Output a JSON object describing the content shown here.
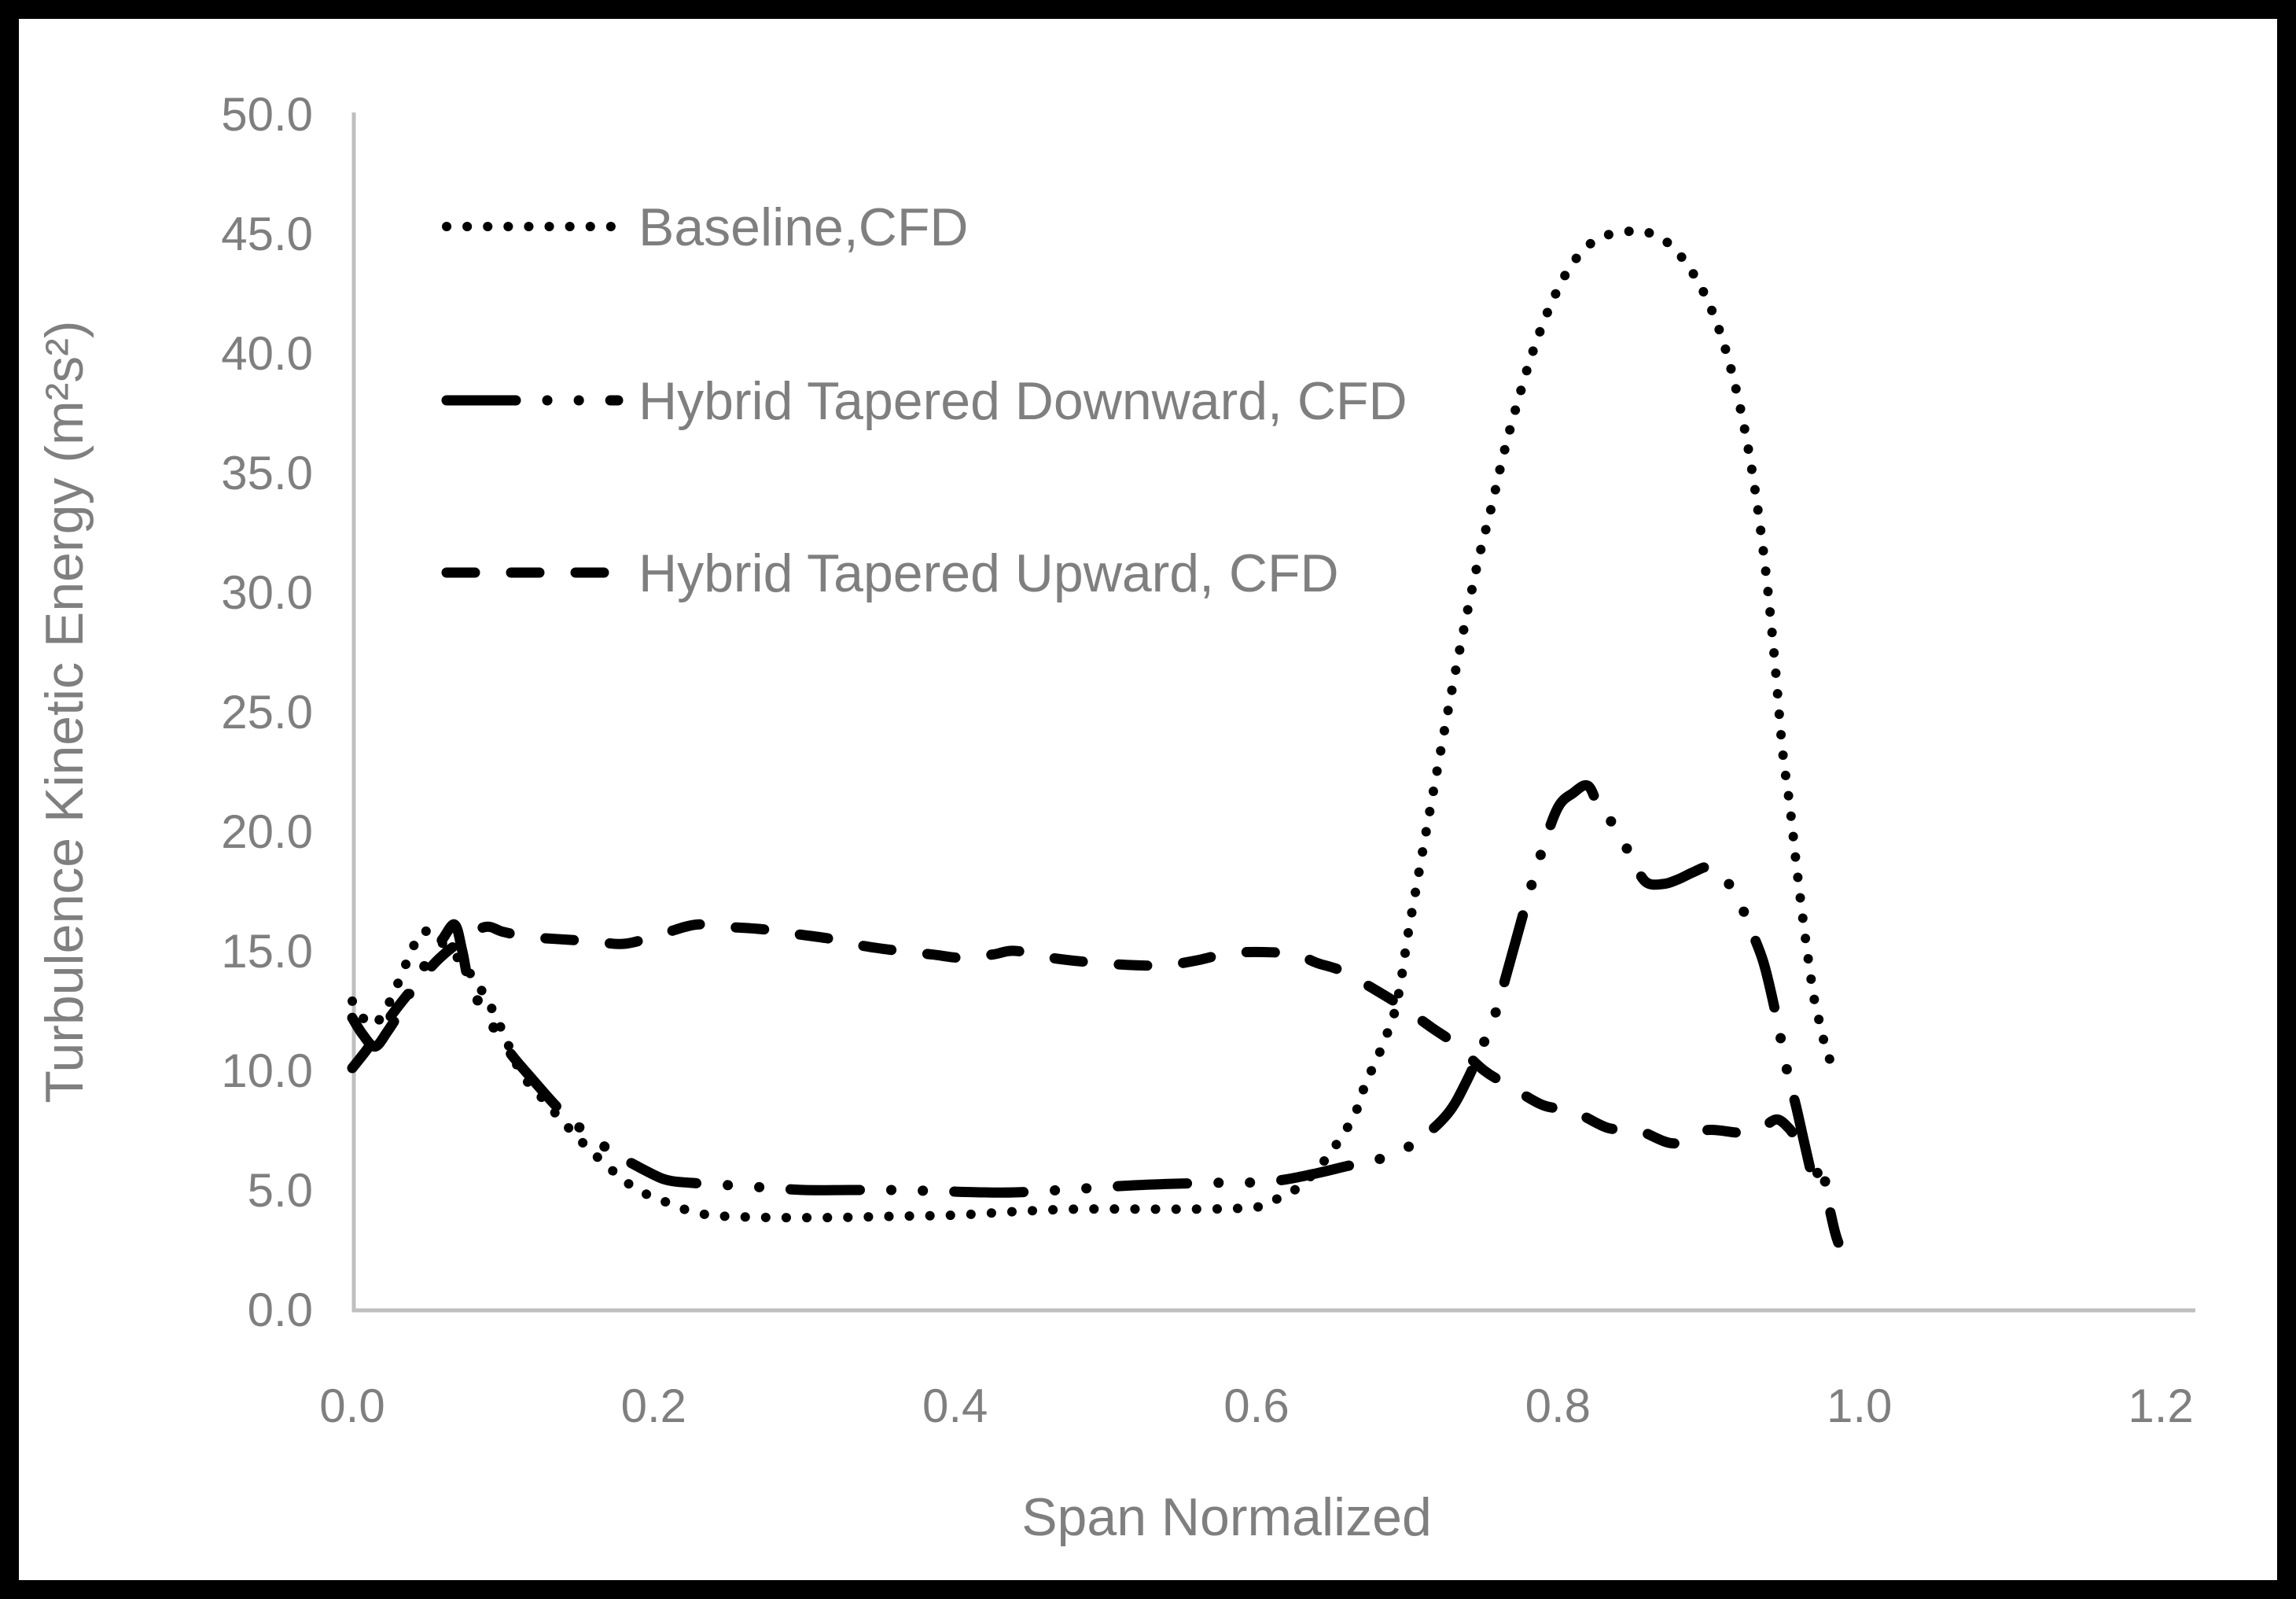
{
  "colors": {
    "background": "#ffffff",
    "frame_border": "#000000",
    "axis_line": "#bfbfbf",
    "label_text": "#7f7f7f",
    "series_stroke": "#000000"
  },
  "chart_data": {
    "type": "line",
    "title": "",
    "xlabel": "Span Normalized",
    "ylabel": "Turbulence Kinetic Energy (m²s²)",
    "xlim": [
      0.0,
      1.2
    ],
    "ylim": [
      0.0,
      50.0
    ],
    "x_ticks": [
      "0.0",
      "0.2",
      "0.4",
      "0.6",
      "0.8",
      "1.0",
      "1.2"
    ],
    "y_ticks": [
      "0.0",
      "5.0",
      "10.0",
      "15.0",
      "20.0",
      "25.0",
      "30.0",
      "35.0",
      "40.0",
      "45.0",
      "50.0"
    ],
    "grid": false,
    "legend_position": "inside-upper-left",
    "series": [
      {
        "name": "Baseline,CFD",
        "style": "dotted",
        "points": [
          [
            0,
            12.9
          ],
          [
            0.005,
            12.4
          ],
          [
            0.012,
            11.9
          ],
          [
            0.02,
            12.3
          ],
          [
            0.03,
            13.6
          ],
          [
            0.038,
            14.8
          ],
          [
            0.046,
            15.8
          ],
          [
            0.054,
            15.6
          ],
          [
            0.062,
            15.2
          ],
          [
            0.07,
            14.7
          ],
          [
            0.08,
            13.9
          ],
          [
            0.09,
            12.9
          ],
          [
            0.1,
            11.6
          ],
          [
            0.112,
            9.9
          ],
          [
            0.128,
            8.7
          ],
          [
            0.145,
            7.5
          ],
          [
            0.164,
            6.3
          ],
          [
            0.187,
            5.1
          ],
          [
            0.208,
            4.5
          ],
          [
            0.22,
            4.2
          ],
          [
            0.232,
            4.0
          ],
          [
            0.248,
            3.9
          ],
          [
            0.28,
            3.85
          ],
          [
            0.32,
            3.85
          ],
          [
            0.36,
            3.9
          ],
          [
            0.4,
            3.95
          ],
          [
            0.44,
            4.1
          ],
          [
            0.48,
            4.2
          ],
          [
            0.52,
            4.2
          ],
          [
            0.56,
            4.2
          ],
          [
            0.594,
            4.25
          ],
          [
            0.607,
            4.4
          ],
          [
            0.618,
            4.8
          ],
          [
            0.63,
            5.2
          ],
          [
            0.646,
            6.3
          ],
          [
            0.655,
            7.1
          ],
          [
            0.663,
            7.9
          ],
          [
            0.668,
            8.6
          ],
          [
            0.672,
            9.4
          ],
          [
            0.677,
            10.1
          ],
          [
            0.682,
            10.8
          ],
          [
            0.687,
            11.6
          ],
          [
            0.691,
            12.3
          ],
          [
            0.694,
            13.1
          ],
          [
            0.697,
            14.2
          ],
          [
            0.7,
            15.5
          ],
          [
            0.705,
            17.3
          ],
          [
            0.712,
            19.8
          ],
          [
            0.72,
            22.6
          ],
          [
            0.729,
            25.7
          ],
          [
            0.738,
            28.6
          ],
          [
            0.747,
            31.3
          ],
          [
            0.756,
            33.6
          ],
          [
            0.764,
            35.8
          ],
          [
            0.773,
            37.9
          ],
          [
            0.783,
            40.0
          ],
          [
            0.795,
            42.0
          ],
          [
            0.808,
            43.6
          ],
          [
            0.822,
            44.6
          ],
          [
            0.836,
            45.0
          ],
          [
            0.85,
            45.1
          ],
          [
            0.862,
            45.0
          ],
          [
            0.875,
            44.5
          ],
          [
            0.888,
            43.5
          ],
          [
            0.9,
            42.1
          ],
          [
            0.911,
            40.2
          ],
          [
            0.921,
            37.7
          ],
          [
            0.93,
            34.6
          ],
          [
            0.938,
            30.8
          ],
          [
            0.944,
            27.0
          ],
          [
            0.949,
            23.4
          ],
          [
            0.954,
            21.0
          ],
          [
            0.958,
            18.7
          ],
          [
            0.962,
            16.6
          ],
          [
            0.966,
            14.7
          ],
          [
            0.97,
            13.0
          ],
          [
            0.974,
            11.9
          ],
          [
            0.977,
            11.1
          ],
          [
            0.98,
            10.5
          ],
          [
            0.983,
            10.4
          ]
        ]
      },
      {
        "name": "Hybrid Tapered Downward, CFD",
        "style": "dash-dot-dot",
        "points": [
          [
            0,
            12.2
          ],
          [
            0.007,
            11.5
          ],
          [
            0.015,
            11.0
          ],
          [
            0.023,
            11.6
          ],
          [
            0.032,
            12.5
          ],
          [
            0.042,
            13.7
          ],
          [
            0.052,
            14.8
          ],
          [
            0.06,
            15.5
          ],
          [
            0.068,
            16.1
          ],
          [
            0.073,
            15.0
          ],
          [
            0.078,
            13.6
          ],
          [
            0.09,
            12.2
          ],
          [
            0.104,
            10.8
          ],
          [
            0.12,
            9.6
          ],
          [
            0.137,
            8.4
          ],
          [
            0.155,
            7.4
          ],
          [
            0.175,
            6.5
          ],
          [
            0.198,
            5.7
          ],
          [
            0.21,
            5.4
          ],
          [
            0.225,
            5.3
          ],
          [
            0.25,
            5.2
          ],
          [
            0.275,
            5.1
          ],
          [
            0.3,
            5.0
          ],
          [
            0.33,
            5.0
          ],
          [
            0.36,
            5.0
          ],
          [
            0.39,
            4.95
          ],
          [
            0.42,
            4.9
          ],
          [
            0.44,
            4.9
          ],
          [
            0.47,
            5.0
          ],
          [
            0.52,
            5.2
          ],
          [
            0.57,
            5.3
          ],
          [
            0.59,
            5.3
          ],
          [
            0.615,
            5.4
          ],
          [
            0.64,
            5.7
          ],
          [
            0.66,
            6.0
          ],
          [
            0.687,
            6.4
          ],
          [
            0.708,
            7.1
          ],
          [
            0.727,
            8.2
          ],
          [
            0.739,
            9.5
          ],
          [
            0.749,
            10.9
          ],
          [
            0.758,
            12.3
          ],
          [
            0.768,
            14.5
          ],
          [
            0.779,
            17.0
          ],
          [
            0.79,
            19.3
          ],
          [
            0.8,
            21.0
          ],
          [
            0.81,
            21.6
          ],
          [
            0.82,
            21.9
          ],
          [
            0.828,
            20.9
          ],
          [
            0.838,
            20.2
          ],
          [
            0.848,
            19.0
          ],
          [
            0.858,
            17.9
          ],
          [
            0.87,
            17.8
          ],
          [
            0.88,
            18.0
          ],
          [
            0.89,
            18.3
          ],
          [
            0.9,
            18.5
          ],
          [
            0.91,
            18.0
          ],
          [
            0.918,
            17.4
          ],
          [
            0.928,
            15.9
          ],
          [
            0.936,
            14.6
          ],
          [
            0.942,
            13.1
          ],
          [
            0.947,
            11.6
          ],
          [
            0.952,
            10.0
          ],
          [
            0.958,
            8.5
          ],
          [
            0.963,
            7.1
          ],
          [
            0.967,
            6.0
          ],
          [
            0.97,
            5.2
          ],
          [
            0.973,
            5.9
          ],
          [
            0.976,
            6.1
          ],
          [
            0.978,
            4.9
          ],
          [
            0.981,
            4.0
          ],
          [
            0.984,
            3.2
          ],
          [
            0.986,
            2.8
          ]
        ]
      },
      {
        "name": "Hybrid Tapered Upward, CFD",
        "style": "dashed",
        "points": [
          [
            0,
            10.1
          ],
          [
            0.01,
            10.9
          ],
          [
            0.02,
            11.8
          ],
          [
            0.032,
            12.8
          ],
          [
            0.045,
            13.8
          ],
          [
            0.058,
            14.7
          ],
          [
            0.072,
            15.4
          ],
          [
            0.088,
            16.0
          ],
          [
            0.1,
            15.8
          ],
          [
            0.115,
            15.6
          ],
          [
            0.135,
            15.5
          ],
          [
            0.16,
            15.4
          ],
          [
            0.181,
            15.3
          ],
          [
            0.205,
            15.7
          ],
          [
            0.228,
            16.1
          ],
          [
            0.25,
            16.0
          ],
          [
            0.273,
            15.9
          ],
          [
            0.295,
            15.7
          ],
          [
            0.318,
            15.5
          ],
          [
            0.34,
            15.2
          ],
          [
            0.363,
            15.0
          ],
          [
            0.385,
            14.85
          ],
          [
            0.406,
            14.7
          ],
          [
            0.425,
            14.85
          ],
          [
            0.44,
            15.0
          ],
          [
            0.465,
            14.7
          ],
          [
            0.494,
            14.5
          ],
          [
            0.52,
            14.4
          ],
          [
            0.54,
            14.4
          ],
          [
            0.56,
            14.6
          ],
          [
            0.582,
            14.9
          ],
          [
            0.605,
            14.95
          ],
          [
            0.626,
            14.85
          ],
          [
            0.64,
            14.5
          ],
          [
            0.657,
            14.15
          ],
          [
            0.678,
            13.4
          ],
          [
            0.696,
            12.7
          ],
          [
            0.716,
            11.8
          ],
          [
            0.732,
            11.1
          ],
          [
            0.751,
            10.0
          ],
          [
            0.768,
            9.35
          ],
          [
            0.79,
            8.55
          ],
          [
            0.81,
            8.3
          ],
          [
            0.833,
            7.6
          ],
          [
            0.853,
            7.5
          ],
          [
            0.877,
            6.95
          ],
          [
            0.898,
            7.5
          ],
          [
            0.921,
            7.4
          ],
          [
            0.935,
            7.6
          ],
          [
            0.945,
            7.95
          ],
          [
            0.953,
            7.6
          ],
          [
            0.96,
            7.0
          ]
        ]
      }
    ]
  }
}
